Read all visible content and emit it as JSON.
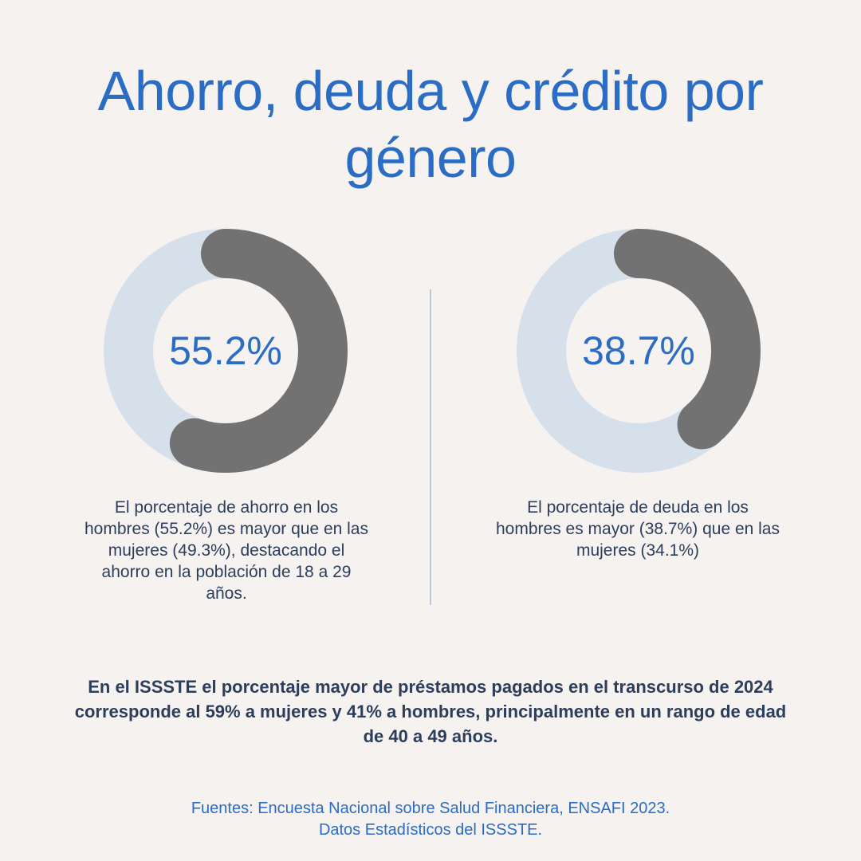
{
  "title": "Ahorro, deuda y crédito por género",
  "chart_data": [
    {
      "type": "pie",
      "value": 55.2,
      "value_label": "55.2%",
      "max": 100,
      "caption": "El porcentaje de ahorro en los hombres (55.2%) es mayor que en las mujeres (49.3%), destacando el ahorro en la población de 18 a 29 años."
    },
    {
      "type": "pie",
      "value": 38.7,
      "value_label": "38.7%",
      "max": 100,
      "caption": "El porcentaje de deuda en los hombres es mayor (38.7%) que en las mujeres (34.1%)"
    }
  ],
  "colors": {
    "arc": "#727272",
    "track": "#d6e0eb",
    "accent": "#2b6cc4",
    "text": "#2c3e5c"
  },
  "summary": "En el ISSSTE el porcentaje mayor de préstamos pagados en el transcurso de 2024 corresponde al 59% a mujeres y 41% a hombres, principalmente en un rango de edad de 40 a 49 años.",
  "sources": {
    "line1": "Fuentes: Encuesta Nacional sobre Salud Financiera, ENSAFI 2023.",
    "line2": "Datos Estadísticos del ISSSTE."
  }
}
